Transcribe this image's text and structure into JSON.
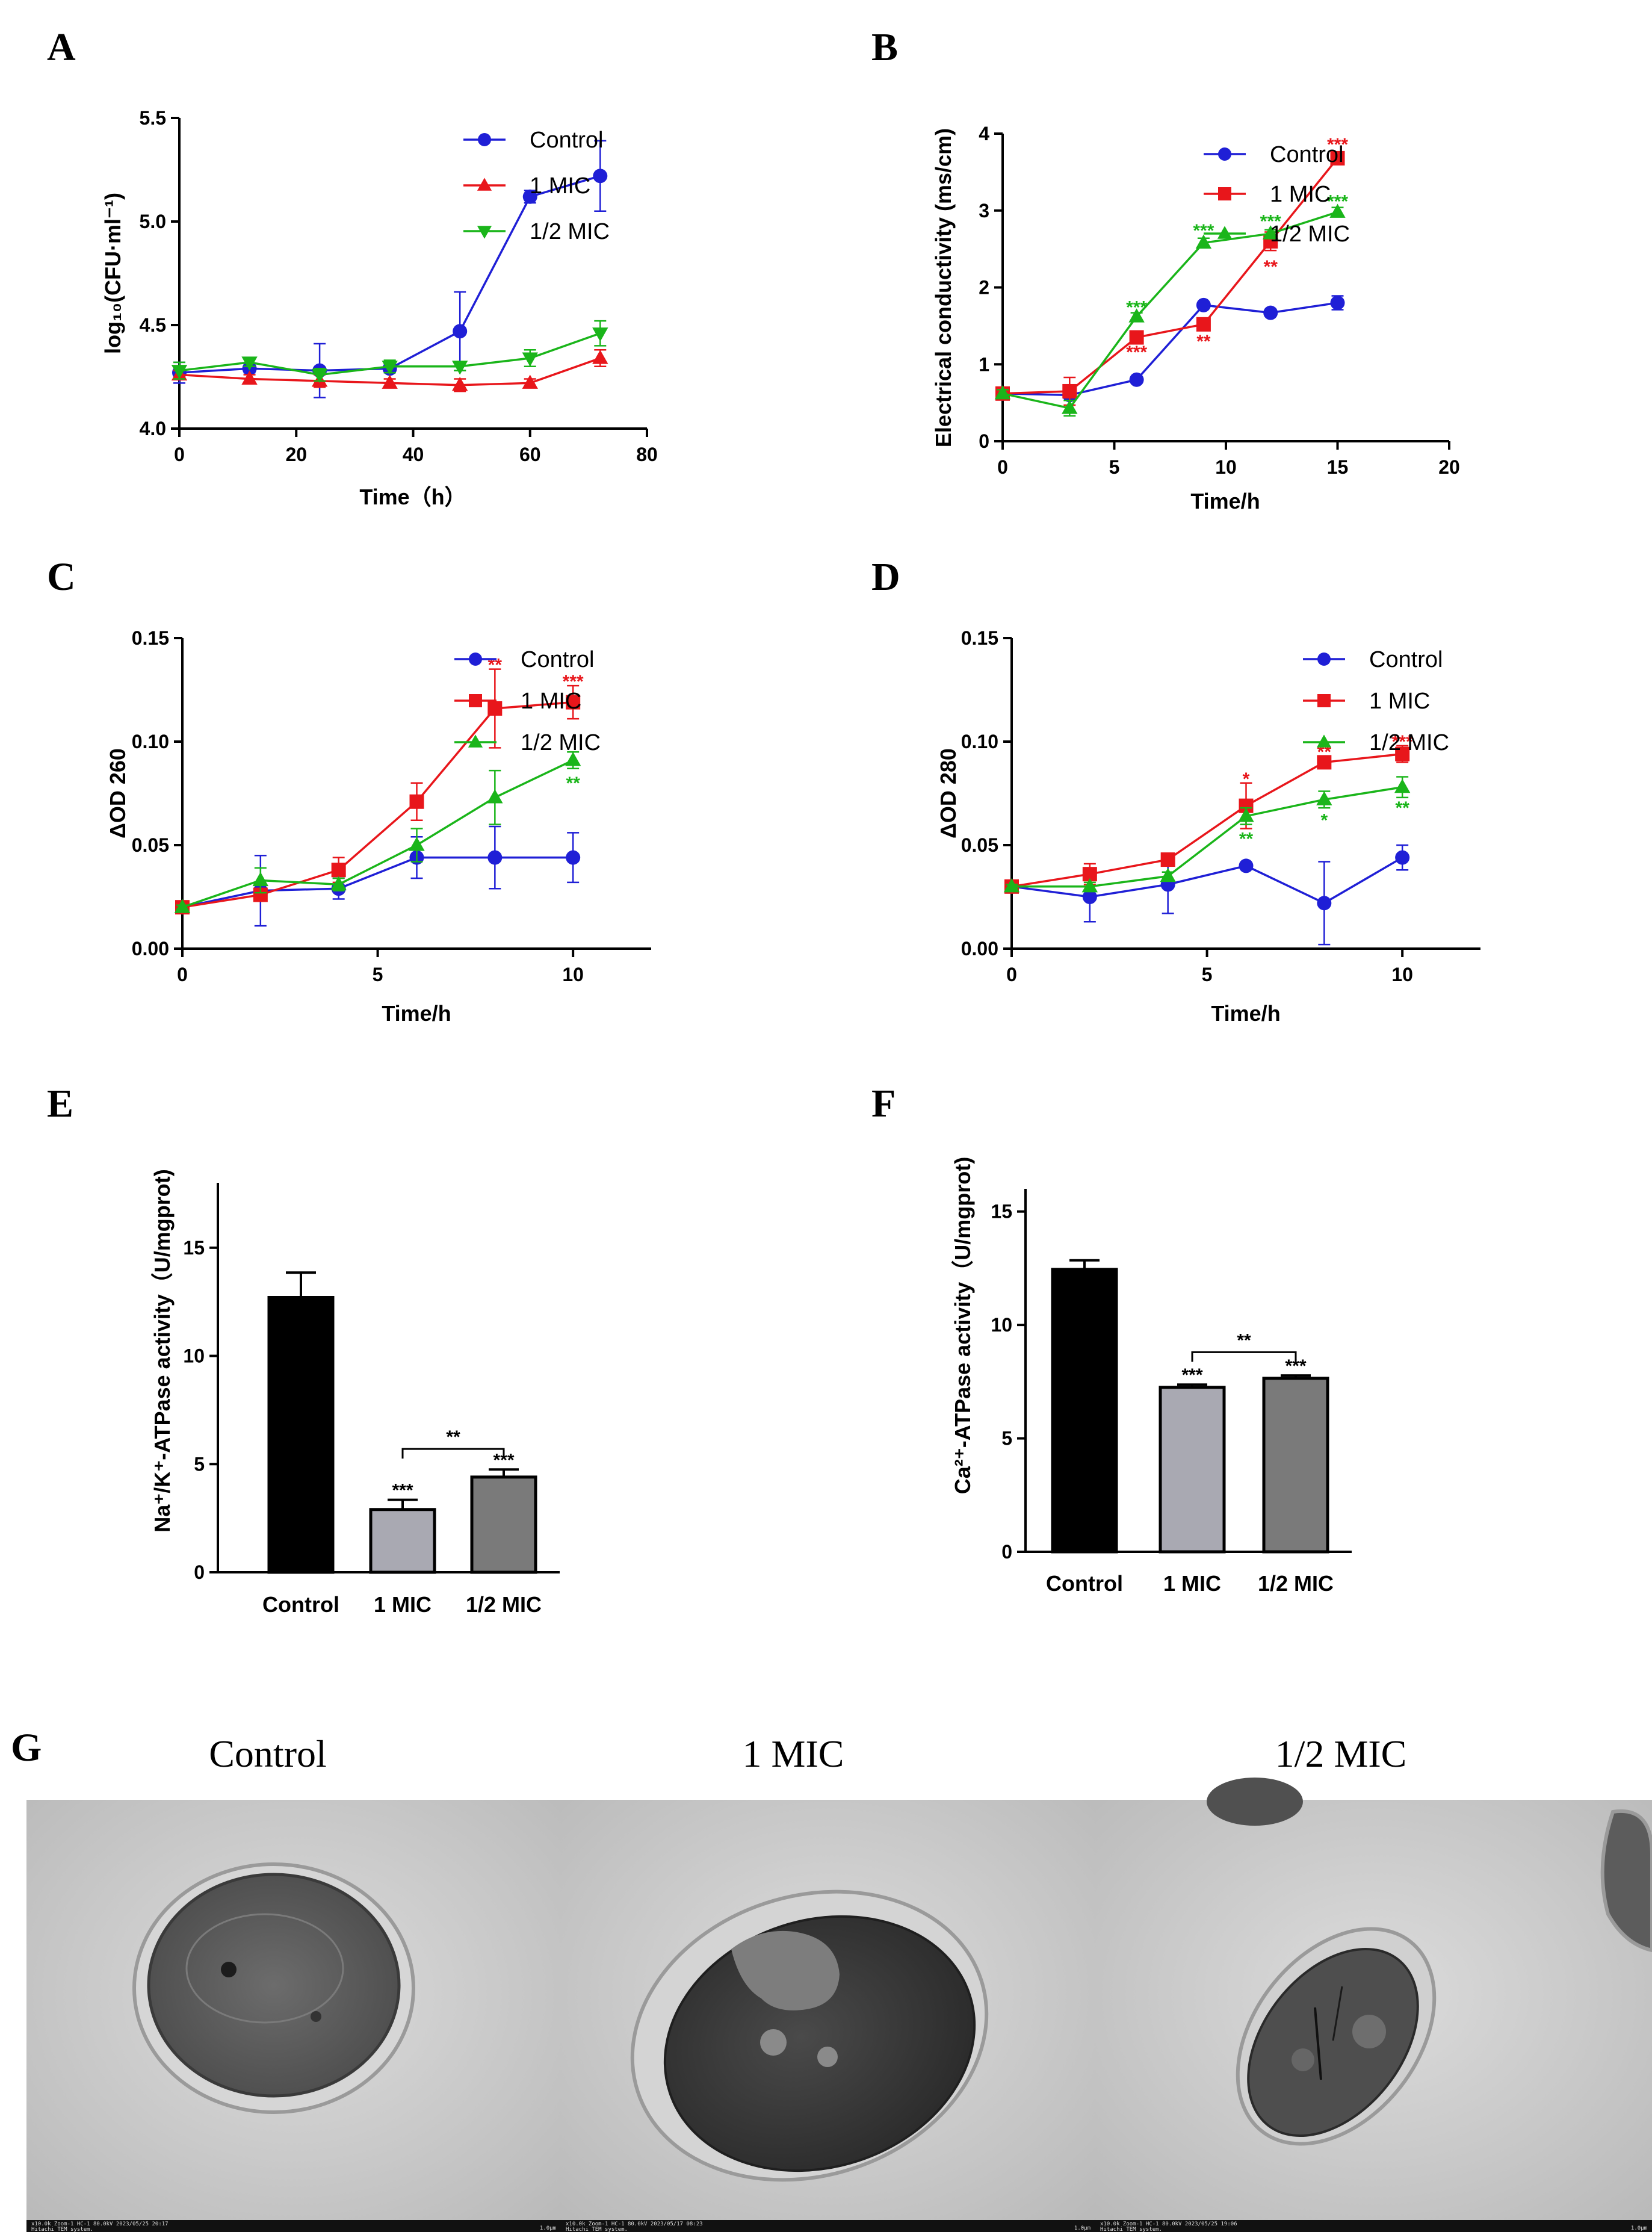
{
  "colors": {
    "Control": "#1f1fd6",
    "1 MIC": "#e8161b",
    "1/2 MIC": "#1ab51a",
    "bar_control": "#000000",
    "bar_1mic": "#a9a9b2",
    "bar_halfmic": "#7a7a7a"
  },
  "panel_letters": [
    "A",
    "B",
    "C",
    "D",
    "E",
    "F",
    "G"
  ],
  "chart_data": [
    {
      "id": "A",
      "type": "line",
      "xlabel": "Time（h）",
      "ylabel": "log₁₀(CFU·ml⁻¹)",
      "xlim": [
        0,
        80
      ],
      "ylim": [
        4.0,
        5.5
      ],
      "xticks": [
        "0",
        "20",
        "40",
        "60",
        "80"
      ],
      "yticks": [
        "4.0",
        "4.5",
        "5.0",
        "5.5"
      ],
      "legend_position": "top-right",
      "series": [
        {
          "name": "Control",
          "marker": "circle",
          "x": [
            0,
            12,
            24,
            36,
            48,
            60,
            72
          ],
          "y": [
            4.27,
            4.29,
            4.28,
            4.29,
            4.47,
            5.12,
            5.22
          ],
          "err": [
            0.05,
            0.02,
            0.13,
            0.02,
            0.19,
            0.03,
            0.17
          ]
        },
        {
          "name": "1 MIC",
          "marker": "triangle-up",
          "x": [
            0,
            12,
            24,
            36,
            48,
            60,
            72
          ],
          "y": [
            4.26,
            4.24,
            4.23,
            4.22,
            4.21,
            4.22,
            4.34
          ],
          "err": [
            0.02,
            0.02,
            0.03,
            0.02,
            0.03,
            0.02,
            0.04
          ]
        },
        {
          "name": "1/2 MIC",
          "marker": "triangle-down",
          "x": [
            0,
            12,
            24,
            36,
            48,
            60,
            72
          ],
          "y": [
            4.28,
            4.32,
            4.26,
            4.3,
            4.3,
            4.34,
            4.46
          ],
          "err": [
            0.04,
            0.02,
            0.03,
            0.03,
            0.02,
            0.04,
            0.06
          ]
        }
      ],
      "annotations": []
    },
    {
      "id": "B",
      "type": "line",
      "xlabel": "Time/h",
      "ylabel": "Electrical conductivity (ms/cm)",
      "xlim": [
        0,
        20
      ],
      "ylim": [
        0,
        4
      ],
      "xticks": [
        "0",
        "5",
        "10",
        "15",
        "20"
      ],
      "yticks": [
        "0",
        "1",
        "2",
        "3",
        "4"
      ],
      "legend_position": "top-right",
      "series": [
        {
          "name": "Control",
          "marker": "circle",
          "x": [
            0,
            3,
            6,
            9,
            12,
            15
          ],
          "y": [
            0.62,
            0.6,
            0.8,
            1.77,
            1.67,
            1.8
          ],
          "err": [
            0.05,
            0.04,
            0.03,
            0.04,
            0.03,
            0.09
          ]
        },
        {
          "name": "1 MIC",
          "marker": "square",
          "x": [
            0,
            3,
            6,
            9,
            12,
            15
          ],
          "y": [
            0.62,
            0.65,
            1.35,
            1.52,
            2.6,
            3.68
          ],
          "err": [
            0.05,
            0.18,
            0.04,
            0.06,
            0.12,
            0.06
          ]
        },
        {
          "name": "1/2 MIC",
          "marker": "triangle-up",
          "x": [
            0,
            3,
            6,
            9,
            12,
            15
          ],
          "y": [
            0.62,
            0.43,
            1.62,
            2.58,
            2.7,
            2.98
          ],
          "err": [
            0.05,
            0.1,
            0.05,
            0.06,
            0.05,
            0.06
          ]
        }
      ],
      "annotations": [
        {
          "text": "***",
          "x": 6,
          "y": 1.16,
          "color": "1 MIC"
        },
        {
          "text": "**",
          "x": 9,
          "y": 1.3,
          "color": "1 MIC"
        },
        {
          "text": "**",
          "x": 12,
          "y": 2.27,
          "color": "1 MIC"
        },
        {
          "text": "***",
          "x": 15,
          "y": 3.86,
          "color": "1 MIC"
        },
        {
          "text": "***",
          "x": 6,
          "y": 1.74,
          "color": "1/2 MIC"
        },
        {
          "text": "***",
          "x": 9,
          "y": 2.74,
          "color": "1/2 MIC"
        },
        {
          "text": "***",
          "x": 12,
          "y": 2.86,
          "color": "1/2 MIC"
        },
        {
          "text": "***",
          "x": 15,
          "y": 3.12,
          "color": "1/2 MIC"
        }
      ]
    },
    {
      "id": "C",
      "type": "line",
      "xlabel": "Time/h",
      "ylabel": "ΔOD 260",
      "xlim": [
        0,
        12
      ],
      "ylim": [
        0,
        0.15
      ],
      "xticks": [
        "0",
        "5",
        "10"
      ],
      "xtick_values": [
        0,
        5,
        10
      ],
      "yticks": [
        "0.00",
        "0.05",
        "0.10",
        "0.15"
      ],
      "legend_position": "top-right",
      "series": [
        {
          "name": "Control",
          "marker": "circle",
          "x": [
            0,
            2,
            4,
            6,
            8,
            10
          ],
          "y": [
            0.02,
            0.028,
            0.029,
            0.044,
            0.044,
            0.044
          ],
          "err": [
            0.001,
            0.017,
            0.005,
            0.01,
            0.015,
            0.012
          ]
        },
        {
          "name": "1 MIC",
          "marker": "square",
          "x": [
            0,
            2,
            4,
            6,
            8,
            10
          ],
          "y": [
            0.02,
            0.026,
            0.038,
            0.071,
            0.116,
            0.119
          ],
          "err": [
            0.001,
            0.003,
            0.006,
            0.009,
            0.019,
            0.008
          ]
        },
        {
          "name": "1/2 MIC",
          "marker": "triangle-up",
          "x": [
            0,
            2,
            4,
            6,
            8,
            10
          ],
          "y": [
            0.02,
            0.033,
            0.031,
            0.05,
            0.073,
            0.091
          ],
          "err": [
            0.001,
            0.006,
            0.003,
            0.008,
            0.013,
            0.004
          ]
        }
      ],
      "annotations": [
        {
          "text": "**",
          "x": 8,
          "y": 0.137,
          "color": "1 MIC"
        },
        {
          "text": "***",
          "x": 10,
          "y": 0.129,
          "color": "1 MIC"
        },
        {
          "text": "**",
          "x": 10,
          "y": 0.08,
          "color": "1/2 MIC"
        }
      ]
    },
    {
      "id": "D",
      "type": "line",
      "xlabel": "Time/h",
      "ylabel": "ΔOD 280",
      "xlim": [
        0,
        12
      ],
      "ylim": [
        0,
        0.15
      ],
      "xticks": [
        "0",
        "5",
        "10"
      ],
      "xtick_values": [
        0,
        5,
        10
      ],
      "yticks": [
        "0.00",
        "0.05",
        "0.10",
        "0.15"
      ],
      "legend_position": "top-right",
      "series": [
        {
          "name": "Control",
          "marker": "circle",
          "x": [
            0,
            2,
            4,
            6,
            8,
            10
          ],
          "y": [
            0.03,
            0.025,
            0.031,
            0.04,
            0.022,
            0.044
          ],
          "err": [
            0.001,
            0.012,
            0.014,
            0.001,
            0.02,
            0.006
          ]
        },
        {
          "name": "1 MIC",
          "marker": "square",
          "x": [
            0,
            2,
            4,
            6,
            8,
            10
          ],
          "y": [
            0.03,
            0.036,
            0.043,
            0.069,
            0.09,
            0.094
          ],
          "err": [
            0.001,
            0.005,
            0.002,
            0.011,
            0.003,
            0.004
          ]
        },
        {
          "name": "1/2 MIC",
          "marker": "triangle-up",
          "x": [
            0,
            2,
            4,
            6,
            8,
            10
          ],
          "y": [
            0.03,
            0.03,
            0.035,
            0.064,
            0.072,
            0.078
          ],
          "err": [
            0.001,
            0.002,
            0.002,
            0.004,
            0.004,
            0.005
          ]
        }
      ],
      "annotations": [
        {
          "text": "*",
          "x": 6,
          "y": 0.082,
          "color": "1 MIC"
        },
        {
          "text": "**",
          "x": 8,
          "y": 0.095,
          "color": "1 MIC"
        },
        {
          "text": "***",
          "x": 10,
          "y": 0.1,
          "color": "1 MIC"
        },
        {
          "text": "**",
          "x": 6,
          "y": 0.053,
          "color": "1/2 MIC"
        },
        {
          "text": "*",
          "x": 8,
          "y": 0.062,
          "color": "1/2 MIC"
        },
        {
          "text": "**",
          "x": 10,
          "y": 0.068,
          "color": "1/2 MIC"
        }
      ]
    },
    {
      "id": "E",
      "type": "bar",
      "ylabel": "Na⁺/K⁺-ATPase activity（U/mgprot)",
      "categories": [
        "Control",
        "1 MIC",
        "1/2 MIC"
      ],
      "values": [
        12.7,
        2.9,
        4.4
      ],
      "err": [
        1.15,
        0.45,
        0.35
      ],
      "ylim": [
        0,
        18
      ],
      "yticks": [
        "0",
        "5",
        "10",
        "15"
      ],
      "ytick_values": [
        0,
        5,
        10,
        15
      ],
      "bar_labels": [
        "",
        "***",
        "***"
      ],
      "bracket": {
        "from": 1,
        "to": 2,
        "label": "**",
        "y": 5.7
      }
    },
    {
      "id": "F",
      "type": "bar",
      "ylabel": "Ca²⁺-ATPase activity（U/mgprot)",
      "categories": [
        "Control",
        "1 MIC",
        "1/2 MIC"
      ],
      "values": [
        12.45,
        7.25,
        7.65
      ],
      "err": [
        0.4,
        0.12,
        0.12
      ],
      "ylim": [
        0,
        16
      ],
      "yticks": [
        "0",
        "5",
        "10",
        "15"
      ],
      "ytick_values": [
        0,
        5,
        10,
        15
      ],
      "bar_labels": [
        "",
        "***",
        "***"
      ],
      "bracket": {
        "from": 1,
        "to": 2,
        "label": "**",
        "y": 8.8
      }
    }
  ],
  "tem": {
    "titles": [
      "Control",
      "1 MIC",
      "1/2 MIC"
    ],
    "footers": [
      {
        "left": "x10.0k Zoom-1 HC-1 80.0kV 2023/05/25 20:17",
        "left2": "Hitachi TEM system.",
        "right": "1.0μm"
      },
      {
        "left": "x10.0k Zoom-1 HC-1 80.0kV 2023/05/17 08:23",
        "left2": "Hitachi TEM system.",
        "right": "1.0μm"
      },
      {
        "left": "x10.0k Zoom-1 HC-1 80.0kV 2023/05/25 19:06",
        "left2": "Hitachi TEM system.",
        "right": "1.0μm"
      }
    ]
  }
}
